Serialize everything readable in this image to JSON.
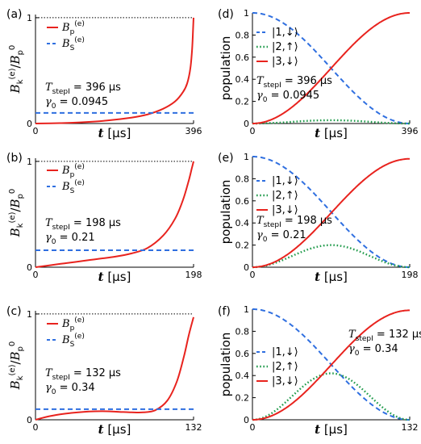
{
  "chart_data": [
    {
      "panel": "(a)",
      "type": "line",
      "xlabel": "t [µs]",
      "ylabel": "B_k^(e)/B_p^0",
      "xticks": [
        "0",
        "396"
      ],
      "yticks": [
        "0",
        "1"
      ],
      "xlim": [
        0,
        396
      ],
      "ylim": [
        0,
        1.03
      ],
      "legend": [
        "B_p^(e)",
        "B_S^(e)"
      ],
      "annotation": [
        "T_stepI = 396 µs",
        "γ0 = 0.0945"
      ],
      "series": [
        {
          "name": "B_p^(e)",
          "color": "#e8231e",
          "dash": "solid",
          "shape": "ramp_a",
          "x": [
            0,
            60,
            120,
            180,
            240,
            280,
            320,
            350,
            370,
            380,
            388,
            392,
            394,
            396
          ],
          "y": [
            0.0,
            0.004,
            0.012,
            0.028,
            0.055,
            0.085,
            0.14,
            0.21,
            0.3,
            0.38,
            0.52,
            0.68,
            0.82,
            1.0
          ]
        },
        {
          "name": "B_S^(e)",
          "color": "#2f6fe0",
          "dash": "dashed",
          "shape": "flat",
          "x": [
            0,
            396
          ],
          "y": [
            0.1,
            0.1
          ]
        }
      ]
    },
    {
      "panel": "(d)",
      "type": "line",
      "xlabel": "t [µs]",
      "ylabel": "population",
      "xticks": [
        "0",
        "396"
      ],
      "yticks": [
        "0",
        "0.2",
        "0.4",
        "0.6",
        "0.8",
        "1"
      ],
      "xlim": [
        0,
        396
      ],
      "ylim": [
        0,
        1
      ],
      "legend": [
        "|1,↓⟩",
        "|2,↑⟩",
        "|3,↓⟩"
      ],
      "annotation": [
        "T_stepI = 396 µs",
        "γ0 = 0.0945"
      ],
      "series": [
        {
          "name": "|1,↓⟩",
          "color": "#2f6fe0",
          "dash": "dashed",
          "shape": "cos2",
          "x": [
            0,
            396
          ],
          "y": [
            1,
            0
          ]
        },
        {
          "name": "|2,↑⟩",
          "color": "#1f9a4a",
          "dash": "dotted",
          "shape": "bump",
          "x": [
            0,
            198,
            396
          ],
          "y": [
            0,
            0.03,
            0
          ]
        },
        {
          "name": "|3,↓⟩",
          "color": "#e8231e",
          "dash": "solid",
          "shape": "sin2",
          "x": [
            0,
            396
          ],
          "y": [
            0,
            1
          ]
        }
      ]
    },
    {
      "panel": "(b)",
      "type": "line",
      "xlabel": "t [µs]",
      "ylabel": "B_k^(e)/B_p^0",
      "xticks": [
        "0",
        "198"
      ],
      "yticks": [
        "0",
        "1"
      ],
      "xlim": [
        0,
        198
      ],
      "ylim": [
        0,
        1.03
      ],
      "legend": [
        "B_p^(e)",
        "B_S^(e)"
      ],
      "annotation": [
        "T_stepI = 198 µs",
        "γ0 = 0.21"
      ],
      "series": [
        {
          "name": "B_p^(e)",
          "color": "#e8231e",
          "dash": "solid",
          "shape": "ramp_b",
          "x": [
            0,
            20,
            40,
            60,
            80,
            100,
            120,
            140,
            160,
            175,
            185,
            192,
            196,
            198
          ],
          "y": [
            0.0,
            0.02,
            0.04,
            0.06,
            0.08,
            0.1,
            0.13,
            0.18,
            0.3,
            0.46,
            0.64,
            0.82,
            0.94,
            1.0
          ]
        },
        {
          "name": "B_S^(e)",
          "color": "#2f6fe0",
          "dash": "dashed",
          "shape": "flat",
          "x": [
            0,
            198
          ],
          "y": [
            0.16,
            0.16
          ]
        }
      ]
    },
    {
      "panel": "(e)",
      "type": "line",
      "xlabel": "t [µs]",
      "ylabel": "population",
      "xticks": [
        "0",
        "198"
      ],
      "yticks": [
        "0",
        "0.2",
        "0.4",
        "0.6",
        "0.8",
        "1"
      ],
      "xlim": [
        0,
        198
      ],
      "ylim": [
        0,
        1
      ],
      "legend": [
        "|1,↓⟩",
        "|2,↑⟩",
        "|3,↓⟩"
      ],
      "annotation": [
        "T_stepI = 198 µs",
        "γ0 = 0.21"
      ],
      "series": [
        {
          "name": "|1,↓⟩",
          "color": "#2f6fe0",
          "dash": "dashed",
          "shape": "cos2",
          "x": [
            0,
            198
          ],
          "y": [
            1,
            0
          ]
        },
        {
          "name": "|2,↑⟩",
          "color": "#1f9a4a",
          "dash": "dotted",
          "shape": "bump",
          "x": [
            0,
            99,
            198
          ],
          "y": [
            0,
            0.2,
            0
          ]
        },
        {
          "name": "|3,↓⟩",
          "color": "#e8231e",
          "dash": "solid",
          "shape": "sin2",
          "x": [
            0,
            198
          ],
          "y": [
            0,
            0.98
          ]
        }
      ]
    },
    {
      "panel": "(c)",
      "type": "line",
      "xlabel": "t [µs]",
      "ylabel": "B_k^(e)/B_p^0",
      "xticks": [
        "0",
        "132"
      ],
      "yticks": [
        "0",
        "1"
      ],
      "xlim": [
        0,
        132
      ],
      "ylim": [
        0,
        1.03
      ],
      "legend": [
        "B_p^(e)",
        "B_S^(e)"
      ],
      "annotation": [
        "T_stepI = 132 µs",
        "γ0 = 0.34"
      ],
      "series": [
        {
          "name": "B_p^(e)",
          "color": "#e8231e",
          "dash": "solid",
          "shape": "ramp_c",
          "x": [
            0,
            10,
            20,
            30,
            40,
            50,
            60,
            70,
            80,
            90,
            100,
            110,
            118,
            124,
            128,
            132
          ],
          "y": [
            0.0,
            0.03,
            0.05,
            0.065,
            0.075,
            0.08,
            0.08,
            0.075,
            0.07,
            0.07,
            0.09,
            0.18,
            0.36,
            0.6,
            0.8,
            0.97
          ]
        },
        {
          "name": "B_S^(e)",
          "color": "#2f6fe0",
          "dash": "dashed",
          "shape": "flat",
          "x": [
            0,
            132
          ],
          "y": [
            0.1,
            0.1
          ]
        }
      ]
    },
    {
      "panel": "(f)",
      "type": "line",
      "xlabel": "t [µs]",
      "ylabel": "population",
      "xticks": [
        "0",
        "132"
      ],
      "yticks": [
        "0",
        "0.2",
        "0.4",
        "0.6",
        "0.8",
        "1"
      ],
      "xlim": [
        0,
        132
      ],
      "ylim": [
        0,
        1
      ],
      "legend": [
        "|1,↓⟩",
        "|2,↑⟩",
        "|3,↓⟩"
      ],
      "annotation": [
        "T_stepI = 132 µs",
        "γ0 = 0.34"
      ],
      "series": [
        {
          "name": "|1,↓⟩",
          "color": "#2f6fe0",
          "dash": "dashed",
          "shape": "cos2",
          "x": [
            0,
            132
          ],
          "y": [
            1,
            0
          ]
        },
        {
          "name": "|2,↑⟩",
          "color": "#1f9a4a",
          "dash": "dotted",
          "shape": "bump",
          "x": [
            0,
            66,
            132
          ],
          "y": [
            0,
            0.42,
            0
          ]
        },
        {
          "name": "|3,↓⟩",
          "color": "#e8231e",
          "dash": "solid",
          "shape": "sin2",
          "x": [
            0,
            132
          ],
          "y": [
            0,
            0.99
          ]
        }
      ]
    }
  ]
}
